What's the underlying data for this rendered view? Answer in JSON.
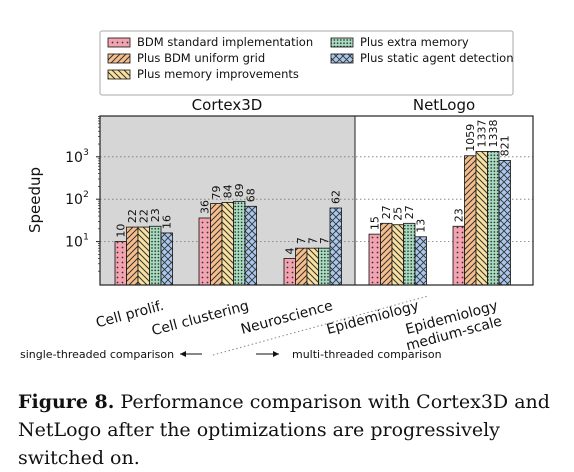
{
  "chart_data": {
    "type": "bar",
    "ylabel": "Speedup",
    "yscale": "log",
    "ylim": [
      1,
      10000
    ],
    "yticks": [
      {
        "value": 10,
        "label": "10"
      },
      {
        "value": 100,
        "label": "10"
      },
      {
        "value": 1000,
        "label": "10"
      }
    ],
    "ytick_exponents": [
      "1",
      "2",
      "3"
    ],
    "grid": "horizontal dotted",
    "legend_position": "top",
    "panels": [
      {
        "label": "Cortex3D",
        "categories": [
          "Cell prolif.",
          "Cell clustering",
          "Neuroscience"
        ],
        "shaded": true
      },
      {
        "label": "NetLogo",
        "categories": [
          "Epidemiology",
          "Epidemiology medium-scale"
        ],
        "shaded": false
      }
    ],
    "categories": [
      "Cell prolif.",
      "Cell clustering",
      "Neuroscience",
      "Epidemiology",
      "Epidemiology medium-scale"
    ],
    "category_labels": [
      [
        "Cell prolif."
      ],
      [
        "Cell clustering"
      ],
      [
        "Neuroscience"
      ],
      [
        "Epidemiology"
      ],
      [
        "Epidemiology",
        "medium-scale"
      ]
    ],
    "series": [
      {
        "name": "BDM standard implementation",
        "color": "#f4a3b0",
        "pattern": "dots",
        "values": [
          10,
          36,
          4,
          15,
          23
        ]
      },
      {
        "name": "Plus BDM uniform grid",
        "color": "#f7be8d",
        "pattern": "diag-right",
        "values": [
          22,
          79,
          7,
          27,
          1059
        ]
      },
      {
        "name": "Plus memory improvements",
        "color": "#f7e0a0",
        "pattern": "diag-left",
        "values": [
          22,
          84,
          7,
          25,
          1337
        ]
      },
      {
        "name": "Plus extra memory",
        "color": "#a8dcc0",
        "pattern": "dense-dots",
        "values": [
          23,
          89,
          7,
          27,
          1338
        ]
      },
      {
        "name": "Plus static agent detection",
        "color": "#a9c8ec",
        "pattern": "crosshatch",
        "values": [
          16,
          68,
          62,
          13,
          821
        ]
      }
    ],
    "annotations": {
      "left": "single-threaded comparison",
      "right": "multi-threaded comparison"
    }
  },
  "caption": {
    "label": "Figure 8.",
    "text": " Performance comparison with Cortex3D and NetLogo after the optimizations are progressively switched on."
  }
}
